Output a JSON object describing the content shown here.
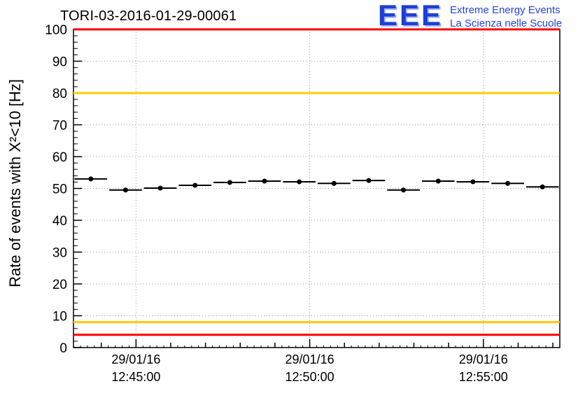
{
  "header": {
    "title": "TORI-03-2016-01-29-00061",
    "logo": {
      "text": "EEE",
      "line1": "Extreme Energy Events",
      "line2": "La Scienza nelle Scuole"
    }
  },
  "chart_data": {
    "type": "scatter",
    "title": "TORI-03-2016-01-29-00061",
    "xlabel": "",
    "ylabel": "Rate of events with X²<10 [Hz]",
    "ylim": [
      0,
      100
    ],
    "xlim": [
      0.2,
      14.2
    ],
    "grid": true,
    "legend": "none",
    "y_major_ticks": [
      0,
      10,
      20,
      30,
      40,
      50,
      60,
      70,
      80,
      90,
      100
    ],
    "y_minor_step": 2,
    "x_major_ticks": [
      {
        "x": 2,
        "date": "29/01/16",
        "time": "12:45:00"
      },
      {
        "x": 7,
        "date": "29/01/16",
        "time": "12:50:00"
      },
      {
        "x": 12,
        "date": "29/01/16",
        "time": "12:55:00"
      }
    ],
    "hlines": [
      {
        "y": 100,
        "color": "#ff0000",
        "meaning": "alarm-high"
      },
      {
        "y": 80,
        "color": "#ffcc00",
        "meaning": "warning-high"
      },
      {
        "y": 8,
        "color": "#ffcc00",
        "meaning": "warning-low"
      },
      {
        "y": 4,
        "color": "#ff0000",
        "meaning": "alarm-low"
      }
    ],
    "points": {
      "x": [
        0.7,
        1.7,
        2.7,
        3.7,
        4.7,
        5.7,
        6.7,
        7.7,
        8.7,
        9.7,
        10.7,
        11.7,
        12.7,
        13.7
      ],
      "y": [
        53.0,
        49.5,
        50.1,
        51.0,
        51.9,
        52.3,
        52.1,
        51.6,
        52.5,
        49.5,
        52.3,
        52.1,
        51.6,
        50.5
      ],
      "xerr": 0.47,
      "yerr": 0.5
    },
    "colors": {
      "marker": "#000000",
      "grid": "#999999",
      "frame": "#000000"
    }
  }
}
